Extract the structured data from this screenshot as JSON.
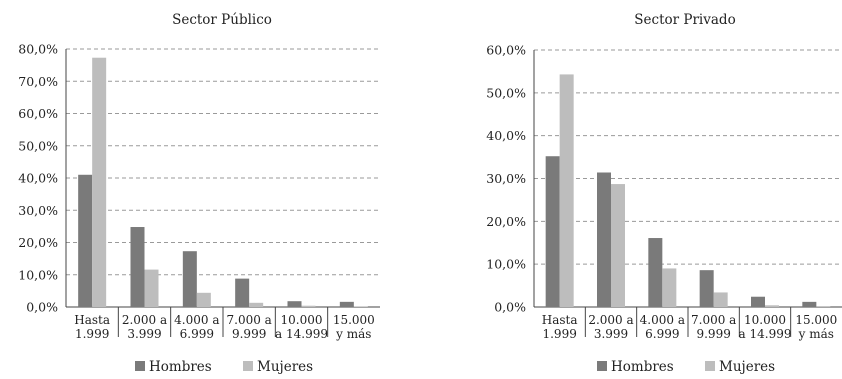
{
  "chart_data": [
    {
      "type": "bar",
      "title": "Sector Público",
      "categories": [
        [
          "Hasta",
          "1.999"
        ],
        [
          "2.000 a",
          "3.999"
        ],
        [
          "4.000 a",
          "6.999"
        ],
        [
          "7.000 a",
          "9.999"
        ],
        [
          "10.000",
          "a 14.999"
        ],
        [
          "15.000",
          "y más"
        ]
      ],
      "series": [
        {
          "name": "Hombres",
          "color": "#7a7a7a",
          "values": [
            41.0,
            24.8,
            17.3,
            8.8,
            1.8,
            1.6
          ]
        },
        {
          "name": "Mujeres",
          "color": "#bdbdbd",
          "values": [
            77.3,
            11.6,
            4.4,
            1.3,
            0.4,
            0.2
          ]
        }
      ],
      "ylim": [
        0,
        80
      ],
      "yticks": [
        "0,0%",
        "10,0%",
        "20,0%",
        "30,0%",
        "40,0%",
        "50,0%",
        "60,0%",
        "70,0%",
        "80,0%"
      ],
      "grid": true,
      "legend_position": "bottom"
    },
    {
      "type": "bar",
      "title": "Sector Privado",
      "categories": [
        [
          "Hasta",
          "1.999"
        ],
        [
          "2.000 a",
          "3.999"
        ],
        [
          "4.000 a",
          "6.999"
        ],
        [
          "7.000 a",
          "9.999"
        ],
        [
          "10.000",
          "a 14.999"
        ],
        [
          "15.000",
          "y más"
        ]
      ],
      "series": [
        {
          "name": "Hombres",
          "color": "#7a7a7a",
          "values": [
            35.2,
            31.4,
            16.1,
            8.6,
            2.4,
            1.2
          ]
        },
        {
          "name": "Mujeres",
          "color": "#bdbdbd",
          "values": [
            54.3,
            28.7,
            9.0,
            3.4,
            0.4,
            0.2
          ]
        }
      ],
      "ylim": [
        0,
        60
      ],
      "yticks": [
        "0,0%",
        "10,0%",
        "20,0%",
        "30,0%",
        "40,0%",
        "50,0%",
        "60,0%"
      ],
      "grid": true,
      "legend_position": "bottom"
    }
  ]
}
